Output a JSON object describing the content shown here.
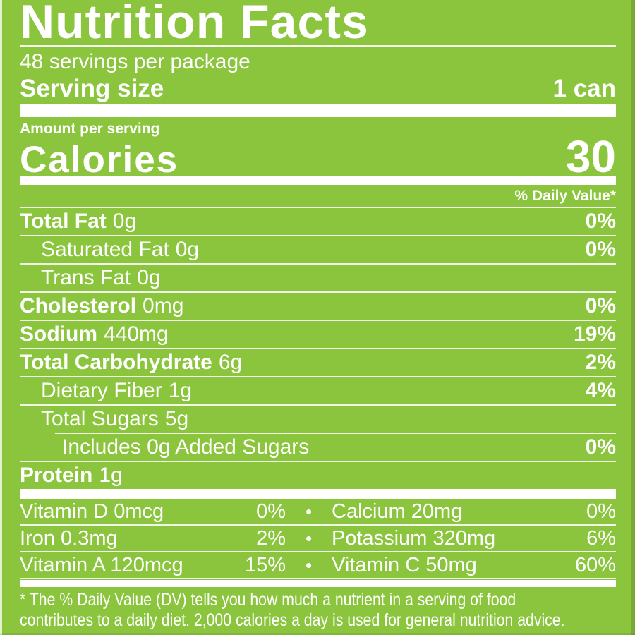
{
  "label": {
    "title": "Nutrition Facts",
    "servings_per_package": "48 servings per package",
    "serving_size": {
      "label": "Serving size",
      "value": "1 can"
    },
    "amount_per_serving": "Amount per serving",
    "calories": {
      "label": "Calories",
      "value": "30"
    },
    "daily_value_header": "% Daily Value*",
    "bullet": "•",
    "nutrients": [
      {
        "name": "Total Fat",
        "amount": "0g",
        "dv": "0%"
      },
      {
        "name": "Saturated Fat",
        "amount": "0g",
        "dv": "0%"
      },
      {
        "name": "Trans Fat",
        "amount": "0g",
        "dv": ""
      },
      {
        "name": "Cholesterol",
        "amount": "0mg",
        "dv": "0%"
      },
      {
        "name": "Sodium",
        "amount": "440mg",
        "dv": "19%"
      },
      {
        "name": "Total Carbohydrate",
        "amount": "6g",
        "dv": "2%"
      },
      {
        "name": "Dietary Fiber",
        "amount": "1g",
        "dv": "4%"
      },
      {
        "name": "Total Sugars",
        "amount": "5g",
        "dv": ""
      },
      {
        "name": "Includes 0g Added Sugars",
        "amount": "",
        "dv": "0%"
      },
      {
        "name": "Protein",
        "amount": "1g",
        "dv": ""
      }
    ],
    "micronutrients": [
      {
        "left": {
          "name": "Vitamin D 0mcg",
          "dv": "0%"
        },
        "right": {
          "name": "Calcium 20mg",
          "dv": "0%"
        }
      },
      {
        "left": {
          "name": "Iron 0.3mg",
          "dv": "2%"
        },
        "right": {
          "name": "Potassium 320mg",
          "dv": "6%"
        }
      },
      {
        "left": {
          "name": "Vitamin A 120mcg",
          "dv": "15%"
        },
        "right": {
          "name": "Vitamin C 50mg",
          "dv": "60%"
        }
      }
    ],
    "footnote": [
      "* The % Daily Value (DV) tells you how much a nutrient in a serving of food",
      "contributes to a daily diet. 2,000 calories a day is used for general nutrition advice."
    ],
    "colors": {
      "background": "#8bc53e",
      "text": "#ffffff",
      "divider": "#f2f8e8",
      "bar": "#ffffff"
    }
  }
}
